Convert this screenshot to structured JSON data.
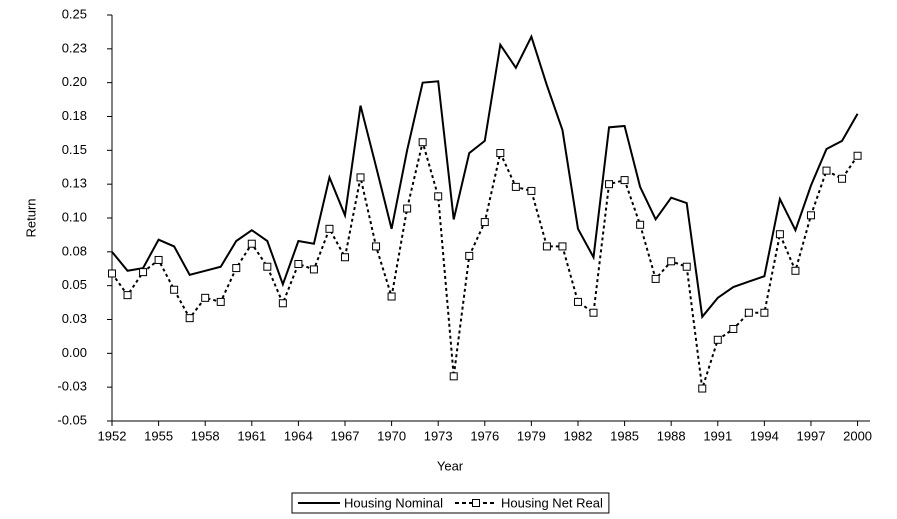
{
  "chart_data": {
    "type": "line",
    "x_label": "Year",
    "y_label": "Return",
    "x": [
      1952,
      1953,
      1954,
      1955,
      1956,
      1957,
      1958,
      1959,
      1960,
      1961,
      1962,
      1963,
      1964,
      1965,
      1966,
      1967,
      1968,
      1969,
      1970,
      1971,
      1972,
      1973,
      1974,
      1975,
      1976,
      1977,
      1978,
      1979,
      1980,
      1981,
      1982,
      1983,
      1984,
      1985,
      1986,
      1987,
      1988,
      1989,
      1990,
      1991,
      1992,
      1993,
      1994,
      1995,
      1996,
      1997,
      1998,
      1999,
      2000
    ],
    "series": [
      {
        "name": "Housing Nominal",
        "color": "#000000",
        "style": "solid",
        "values": [
          0.075,
          0.061,
          0.063,
          0.084,
          0.079,
          0.058,
          0.061,
          0.064,
          0.083,
          0.091,
          0.083,
          0.051,
          0.083,
          0.081,
          0.13,
          0.102,
          0.183,
          0.138,
          0.092,
          0.15,
          0.2,
          0.201,
          0.099,
          0.148,
          0.157,
          0.228,
          0.211,
          0.234,
          0.198,
          0.165,
          0.092,
          0.071,
          0.167,
          0.168,
          0.123,
          0.099,
          0.115,
          0.111,
          0.027,
          0.041,
          0.049,
          0.053,
          0.057,
          0.114,
          0.091,
          0.124,
          0.151,
          0.157,
          0.177
        ]
      },
      {
        "name": "Housing Net Real",
        "color": "#000000",
        "style": "dotted",
        "marker": "square",
        "values": [
          0.059,
          0.043,
          0.06,
          0.069,
          0.047,
          0.026,
          0.041,
          0.038,
          0.063,
          0.081,
          0.064,
          0.037,
          0.066,
          0.062,
          0.092,
          0.071,
          0.13,
          0.079,
          0.042,
          0.107,
          0.156,
          0.116,
          -0.017,
          0.072,
          0.097,
          0.148,
          0.123,
          0.12,
          0.079,
          0.079,
          0.038,
          0.03,
          0.125,
          0.128,
          0.095,
          0.055,
          0.068,
          0.064,
          -0.026,
          0.01,
          0.018,
          0.03,
          0.03,
          0.088,
          0.061,
          0.102,
          0.135,
          0.129,
          0.146
        ]
      }
    ],
    "xlim": [
      1952,
      2000.8
    ],
    "xticks": [
      1952,
      1955,
      1958,
      1961,
      1964,
      1967,
      1970,
      1973,
      1976,
      1979,
      1982,
      1985,
      1988,
      1991,
      1994,
      1997,
      2000
    ],
    "ylim": [
      -0.05,
      0.25
    ],
    "yticks": [
      {
        "value": -0.05,
        "label": "-0.05"
      },
      {
        "value": -0.025,
        "label": "-0.03"
      },
      {
        "value": 0,
        "label": "0.00"
      },
      {
        "value": 0.025,
        "label": "0.03"
      },
      {
        "value": 0.05,
        "label": "0.05"
      },
      {
        "value": 0.075,
        "label": "0.08"
      },
      {
        "value": 0.1,
        "label": "0.10"
      },
      {
        "value": 0.125,
        "label": "0.13"
      },
      {
        "value": 0.15,
        "label": "0.15"
      },
      {
        "value": 0.175,
        "label": "0.18"
      },
      {
        "value": 0.2,
        "label": "0.20"
      },
      {
        "value": 0.225,
        "label": "0.23"
      },
      {
        "value": 0.25,
        "label": "0.25"
      }
    ],
    "grid": false,
    "legend": "bottom"
  }
}
